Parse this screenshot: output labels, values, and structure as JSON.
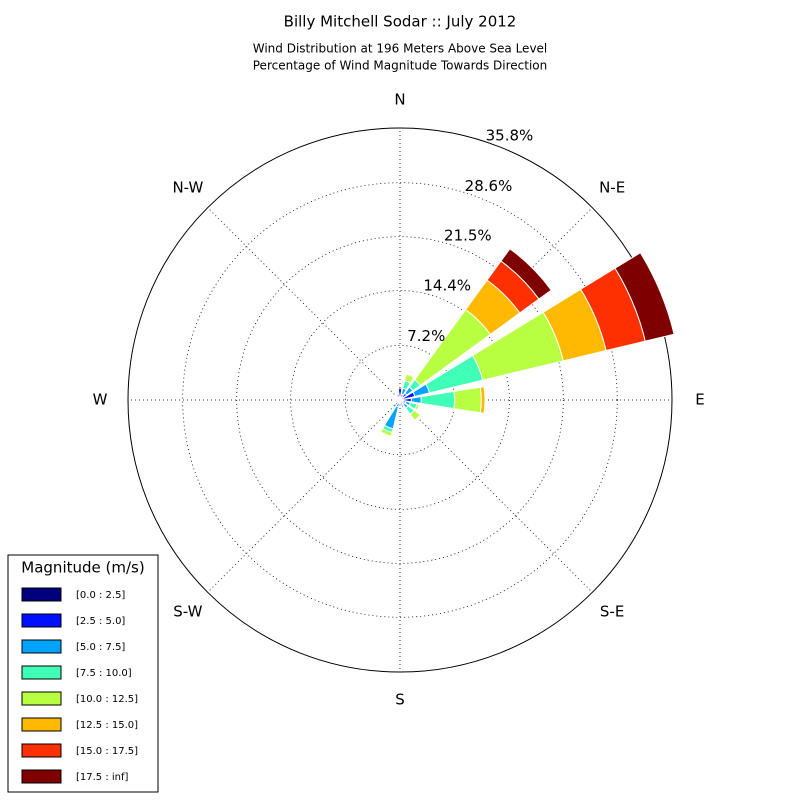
{
  "chart_data": {
    "type": "windrose",
    "title": "Billy Mitchell Sodar :: July 2012",
    "subtitle": [
      "Wind Distribution at 196 Meters Above Sea Level",
      "Percentage of Wind Magnitude Towards Direction"
    ],
    "categories": [
      "N",
      null,
      "N-E",
      null,
      "E",
      null,
      "S-E",
      null,
      "S",
      null,
      "S-W",
      null,
      "W",
      null,
      "N-W",
      null
    ],
    "rlim": [
      0,
      35.8
    ],
    "rticks": [
      {
        "value": 7.2,
        "label": "7.2%"
      },
      {
        "value": 14.4,
        "label": "14.4%"
      },
      {
        "value": 21.5,
        "label": "21.5%"
      },
      {
        "value": 28.6,
        "label": "28.6%"
      },
      {
        "value": 35.8,
        "label": "35.8%"
      }
    ],
    "legend_title": "Magnitude (m/s)",
    "legend_position": "lower left",
    "grid": true,
    "series": [
      {
        "name": "[0.0 : 2.5]",
        "color": "#00007f",
        "values": [
          0.3,
          0.3,
          0.3,
          0.3,
          0.3,
          0.3,
          0.3,
          0.3,
          0.3,
          0.3,
          0.3,
          0.3,
          0.3,
          0.2,
          0.3,
          0.3
        ]
      },
      {
        "name": "[2.5 : 5.0]",
        "color": "#0010ff",
        "values": [
          1.2,
          0.5,
          0.8,
          1.7,
          1.2,
          0.5,
          0.4,
          0.4,
          0.5,
          0.6,
          0.5,
          0.3,
          0.3,
          0.2,
          0.3,
          0.5
        ]
      },
      {
        "name": "[5.0 : 7.5]",
        "color": "#00a4ff",
        "values": [
          0,
          0.8,
          1.0,
          2.0,
          1.3,
          0.6,
          0.6,
          0.3,
          0,
          3.0,
          0.4,
          0,
          0,
          0,
          0,
          0
        ]
      },
      {
        "name": "[7.5 : 10.0]",
        "color": "#40ffb7",
        "values": [
          0,
          1.0,
          1.2,
          7.2,
          4.4,
          0.9,
          1.0,
          0,
          0,
          0.5,
          0,
          0,
          0,
          0,
          0,
          0
        ]
      },
      {
        "name": "[10.0 : 12.5]",
        "color": "#b7ff40",
        "values": [
          0,
          0.9,
          11.4,
          10.9,
          3.5,
          0.3,
          1.0,
          0,
          0,
          0.5,
          0,
          0,
          0,
          0,
          0,
          0
        ]
      },
      {
        "name": "[12.5 : 15.0]",
        "color": "#ffb900",
        "values": [
          0,
          0,
          4.8,
          5.8,
          0.5,
          0,
          0,
          0,
          0,
          0,
          0,
          0,
          0,
          0,
          0,
          0
        ]
      },
      {
        "name": "[15.0 : 17.5]",
        "color": "#ff3000",
        "values": [
          0,
          0,
          3.1,
          5.3,
          0,
          0,
          0,
          0,
          0,
          0,
          0,
          0,
          0,
          0,
          0,
          0
        ]
      },
      {
        "name": "[17.5 : inf]",
        "color": "#7f0000",
        "values": [
          0,
          0,
          2.0,
          3.9,
          0,
          0,
          0,
          0,
          0,
          0,
          0,
          0,
          0,
          0,
          0,
          0
        ]
      }
    ]
  }
}
